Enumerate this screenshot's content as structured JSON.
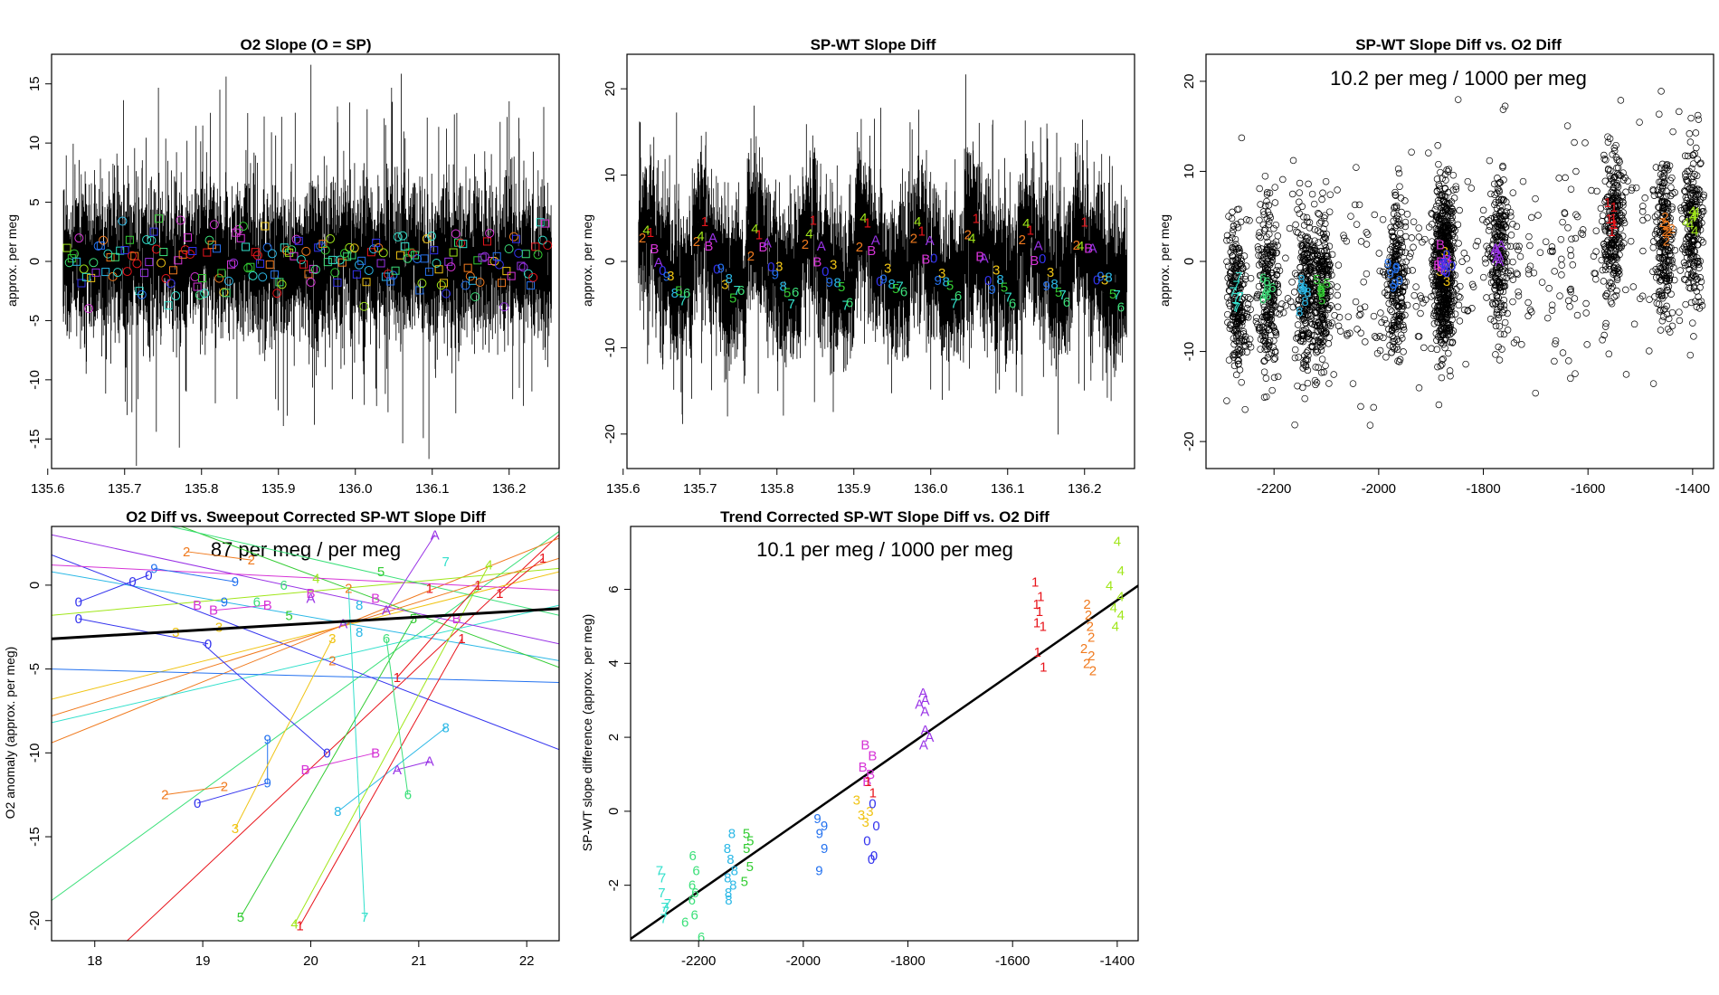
{
  "colors": {
    "1": "#e8141b",
    "2": "#f07a1e",
    "3": "#f0c414",
    "4": "#a0e619",
    "5": "#33cc33",
    "6": "#3ce07a",
    "7": "#33e0cc",
    "8": "#2bb8e6",
    "9": "#2472f0",
    "0": "#3333ee",
    "A": "#9933e6",
    "B": "#d633d6"
  },
  "chart_data": [
    {
      "type": "line",
      "id": "p1",
      "title": "O2 Slope (O = SP)",
      "xlabel": "",
      "ylabel": "approx. per meg",
      "xlim": [
        135.605,
        136.265
      ],
      "ylim": [
        -17.5,
        17.5
      ],
      "xticks": [
        135.6,
        135.7,
        135.8,
        135.9,
        136.0,
        136.1,
        136.2
      ],
      "xtick_labels": [
        "135.6",
        "135.7",
        "135.8",
        "135.9",
        "136.0",
        "136.1",
        "136.2"
      ],
      "yticks": [
        -15,
        -10,
        -5,
        0,
        5,
        10,
        15
      ],
      "ytick_labels": [
        "-15",
        "-10",
        "-5",
        "0",
        "5",
        "10",
        "15"
      ],
      "series_note": "dense black trace between about -4 and 4 with spikes to +/-15, colored squares and circles near 0",
      "x_range": [
        135.62,
        136.255
      ]
    },
    {
      "type": "line",
      "id": "p2",
      "title": "SP-WT Slope Diff",
      "xlabel": "",
      "ylabel": "approx. per meg",
      "xlim": [
        135.605,
        136.265
      ],
      "ylim": [
        -24,
        24
      ],
      "xticks": [
        135.6,
        135.7,
        135.8,
        135.9,
        136.0,
        136.1,
        136.2
      ],
      "xtick_labels": [
        "135.6",
        "135.7",
        "135.8",
        "135.9",
        "136.0",
        "136.1",
        "136.2"
      ],
      "yticks": [
        -20,
        -10,
        0,
        10,
        20
      ],
      "ytick_labels": [
        "-20",
        "-10",
        "0",
        "10",
        "20"
      ],
      "x_range": [
        135.62,
        136.255
      ],
      "label_pattern": [
        "2",
        "4",
        "1",
        "B",
        "A",
        "0",
        "9",
        "3",
        "8",
        "5",
        "7",
        "6"
      ],
      "label_values": [
        2.5,
        3.5,
        4.5,
        0.5,
        1.5,
        -1,
        -2,
        -1.5,
        -2.5,
        -3,
        -4,
        -4.5
      ]
    },
    {
      "type": "scatter",
      "id": "p3",
      "title": "SP-WT Slope Diff vs. O2 Diff",
      "annotation": "10.2 per meg / 1000 per meg",
      "xlabel": "",
      "ylabel": "approx. per meg",
      "xlim": [
        -2330,
        -1360
      ],
      "ylim": [
        -23,
        23
      ],
      "xticks": [
        -2200,
        -2000,
        -1800,
        -1600,
        -1400
      ],
      "xtick_labels": [
        "-2200",
        "-2000",
        "-1800",
        "-1600",
        "-1400"
      ],
      "yticks": [
        -20,
        -10,
        0,
        10,
        20
      ],
      "ytick_labels": [
        "-20",
        "-10",
        "0",
        "10",
        "20"
      ],
      "clusters": [
        {
          "key": "7",
          "x": -2270,
          "y": -3.8
        },
        {
          "key": "6",
          "x": -2210,
          "y": -3.2
        },
        {
          "key": "8",
          "x": -2140,
          "y": -3.0
        },
        {
          "key": "5",
          "x": -2110,
          "y": -2.8
        },
        {
          "key": "9",
          "x": -1965,
          "y": -2.0
        },
        {
          "key": "3",
          "x": -1880,
          "y": -0.5
        },
        {
          "key": "B",
          "x": -1875,
          "y": -0.3
        },
        {
          "key": "0",
          "x": -1870,
          "y": -1.0
        },
        {
          "key": "A",
          "x": -1770,
          "y": 0.8
        },
        {
          "key": "1",
          "x": -1550,
          "y": 4.0
        },
        {
          "key": "2",
          "x": -1455,
          "y": 3.0
        },
        {
          "key": "4",
          "x": -1400,
          "y": 4.5
        }
      ]
    },
    {
      "type": "line",
      "id": "p4",
      "title": "O2 Diff vs. Sweepout Corrected SP-WT Slope Diff",
      "annotation": "87 per meg / per meg",
      "xlabel": "",
      "ylabel": "O2 anomaly (approx. per meg)",
      "xlim": [
        17.6,
        22.3
      ],
      "ylim": [
        -21.2,
        3.5
      ],
      "xticks": [
        18,
        19,
        20,
        21,
        22
      ],
      "xtick_labels": [
        "18",
        "19",
        "20",
        "21",
        "22"
      ],
      "yticks": [
        -20,
        -15,
        -10,
        -5,
        0
      ],
      "ytick_labels": [
        "-20",
        "-15",
        "-10",
        "-5",
        "0"
      ],
      "fit_line": {
        "x": [
          17.6,
          22.3
        ],
        "y": [
          -3.2,
          -1.4
        ]
      },
      "labels": [
        {
          "t": "2",
          "x": 18.65,
          "y": -12.5
        },
        {
          "t": "2",
          "x": 19.2,
          "y": -12.0
        },
        {
          "t": "0",
          "x": 18.95,
          "y": -13.0
        },
        {
          "t": "9",
          "x": 19.6,
          "y": -11.8
        },
        {
          "t": "9",
          "x": 19.6,
          "y": -9.2
        },
        {
          "t": "3",
          "x": 19.3,
          "y": -14.5
        },
        {
          "t": "5",
          "x": 19.35,
          "y": -19.8
        },
        {
          "t": "4",
          "x": 19.85,
          "y": -20.2
        },
        {
          "t": "1",
          "x": 19.9,
          "y": -20.3
        },
        {
          "t": "7",
          "x": 20.5,
          "y": -19.8
        },
        {
          "t": "8",
          "x": 20.25,
          "y": -13.5
        },
        {
          "t": "6",
          "x": 20.9,
          "y": -12.5
        },
        {
          "t": "B",
          "x": 19.95,
          "y": -11.0
        },
        {
          "t": "0",
          "x": 20.15,
          "y": -10.0
        },
        {
          "t": "B",
          "x": 20.6,
          "y": -10.0
        },
        {
          "t": "A",
          "x": 20.8,
          "y": -11.0
        },
        {
          "t": "A",
          "x": 21.1,
          "y": -10.5
        },
        {
          "t": "8",
          "x": 21.25,
          "y": -8.5
        },
        {
          "t": "1",
          "x": 21.4,
          "y": -3.2
        },
        {
          "t": "1",
          "x": 20.8,
          "y": -5.5
        },
        {
          "t": "1",
          "x": 21.55,
          "y": 0.0
        },
        {
          "t": "1",
          "x": 21.75,
          "y": -0.5
        },
        {
          "t": "1",
          "x": 22.15,
          "y": 1.6
        },
        {
          "t": "4",
          "x": 21.65,
          "y": 1.2
        },
        {
          "t": "A",
          "x": 21.15,
          "y": 3.0
        },
        {
          "t": "0",
          "x": 18.35,
          "y": 0.2
        },
        {
          "t": "9",
          "x": 18.55,
          "y": 1.0
        },
        {
          "t": "0",
          "x": 17.85,
          "y": -1.0
        },
        {
          "t": "0",
          "x": 17.85,
          "y": -2.0
        },
        {
          "t": "0",
          "x": 18.5,
          "y": 0.6
        },
        {
          "t": "0",
          "x": 19.05,
          "y": -3.5
        },
        {
          "t": "B",
          "x": 19.1,
          "y": -1.5
        },
        {
          "t": "9",
          "x": 19.3,
          "y": 0.2
        },
        {
          "t": "6",
          "x": 19.5,
          "y": -1.0
        },
        {
          "t": "B",
          "x": 19.6,
          "y": -1.2
        },
        {
          "t": "5",
          "x": 19.8,
          "y": -1.8
        },
        {
          "t": "B",
          "x": 20.0,
          "y": -0.5
        },
        {
          "t": "A",
          "x": 20.3,
          "y": -2.3
        },
        {
          "t": "B",
          "x": 20.6,
          "y": -0.8
        },
        {
          "t": "3",
          "x": 20.2,
          "y": -3.2
        },
        {
          "t": "2",
          "x": 20.2,
          "y": -4.5
        },
        {
          "t": "8",
          "x": 20.45,
          "y": -1.2
        },
        {
          "t": "6",
          "x": 20.7,
          "y": -3.2
        },
        {
          "t": "B",
          "x": 21.35,
          "y": -2.0
        },
        {
          "t": "A",
          "x": 20.7,
          "y": -1.5
        },
        {
          "t": "7",
          "x": 21.25,
          "y": 1.4
        },
        {
          "t": "2",
          "x": 20.35,
          "y": -0.2
        },
        {
          "t": "3",
          "x": 19.15,
          "y": -2.5
        },
        {
          "t": "5",
          "x": 20.95,
          "y": -2.0
        },
        {
          "t": "9",
          "x": 19.2,
          "y": -1.0
        },
        {
          "t": "2",
          "x": 18.85,
          "y": 2.0
        },
        {
          "t": "5",
          "x": 20.65,
          "y": 0.8
        },
        {
          "t": "4",
          "x": 20.05,
          "y": 0.4
        },
        {
          "t": "6",
          "x": 19.75,
          "y": 0.0
        },
        {
          "t": "B",
          "x": 18.95,
          "y": -1.2
        },
        {
          "t": "3",
          "x": 18.75,
          "y": -2.8
        },
        {
          "t": "2",
          "x": 19.45,
          "y": 1.5
        },
        {
          "t": "A",
          "x": 20.0,
          "y": -0.8
        },
        {
          "t": "1",
          "x": 21.1,
          "y": -0.2
        },
        {
          "t": "8",
          "x": 20.45,
          "y": -2.8
        }
      ],
      "connectors": [
        {
          "k": "2",
          "x1": 18.65,
          "y1": -12.5,
          "x2": 19.2,
          "y2": -12.0
        },
        {
          "k": "0",
          "x1": 18.95,
          "y1": -13.0,
          "x2": 19.6,
          "y2": -11.8
        },
        {
          "k": "9",
          "x1": 19.6,
          "y1": -11.8,
          "x2": 19.6,
          "y2": -9.2
        },
        {
          "k": "0",
          "x1": 20.15,
          "y1": -10.0,
          "x2": 19.0,
          "y2": -3.5
        },
        {
          "k": "B",
          "x1": 19.95,
          "y1": -11.0,
          "x2": 20.6,
          "y2": -10.0
        },
        {
          "k": "A",
          "x1": 20.8,
          "y1": -11.0,
          "x2": 21.1,
          "y2": -10.5
        },
        {
          "k": "8",
          "x1": 20.25,
          "y1": -13.5,
          "x2": 21.25,
          "y2": -8.5
        },
        {
          "k": "7",
          "x1": 20.5,
          "y1": -19.8,
          "x2": 20.35,
          "y2": -0.2
        },
        {
          "k": "5",
          "x1": 19.35,
          "y1": -19.8,
          "x2": 20.95,
          "y2": -2.0
        },
        {
          "k": "4",
          "x1": 19.85,
          "y1": -20.2,
          "x2": 21.65,
          "y2": 1.2
        },
        {
          "k": "1",
          "x1": 19.9,
          "y1": -20.3,
          "x2": 21.4,
          "y2": -3.2
        },
        {
          "k": "3",
          "x1": 19.3,
          "y1": -14.5,
          "x2": 20.2,
          "y2": -3.2
        },
        {
          "k": "6",
          "x1": 20.9,
          "y1": -12.5,
          "x2": 20.7,
          "y2": -3.2
        },
        {
          "k": "1",
          "x1": 20.8,
          "y1": -5.5,
          "x2": 21.55,
          "y2": 0.0
        },
        {
          "k": "1",
          "x1": 21.75,
          "y1": -0.5,
          "x2": 22.15,
          "y2": 1.6
        },
        {
          "k": "A",
          "x1": 20.7,
          "y1": -1.5,
          "x2": 21.15,
          "y2": 3.0
        },
        {
          "k": "9",
          "x1": 18.55,
          "y1": 1.0,
          "x2": 19.3,
          "y2": 0.2
        },
        {
          "k": "0",
          "x1": 17.85,
          "y1": -1.0,
          "x2": 18.5,
          "y2": 0.6
        },
        {
          "k": "B",
          "x1": 19.1,
          "y1": -1.5,
          "x2": 19.6,
          "y2": -1.2
        },
        {
          "k": "2",
          "x1": 18.85,
          "y1": 2.0,
          "x2": 19.45,
          "y2": 1.5
        },
        {
          "k": "0",
          "x1": 17.85,
          "y1": -2.0,
          "x2": 19.05,
          "y2": -3.5
        }
      ],
      "long_lines": [
        {
          "k": "1",
          "x1": 18.3,
          "y1": -21.2,
          "x2": 22.3,
          "y2": 3.0
        },
        {
          "k": "6",
          "x1": 17.6,
          "y1": -18.8,
          "x2": 22.3,
          "y2": 3.2
        },
        {
          "k": "3",
          "x1": 17.6,
          "y1": -6.8,
          "x2": 22.3,
          "y2": 0.8
        },
        {
          "k": "2",
          "x1": 17.6,
          "y1": -9.4,
          "x2": 22.3,
          "y2": 2.8
        },
        {
          "k": "7",
          "x1": 17.6,
          "y1": -8.2,
          "x2": 22.3,
          "y2": -1.2
        },
        {
          "k": "9",
          "x1": 17.6,
          "y1": -5.0,
          "x2": 22.3,
          "y2": -5.8
        },
        {
          "k": "8",
          "x1": 17.6,
          "y1": 0.8,
          "x2": 22.3,
          "y2": -4.5
        },
        {
          "k": "0",
          "x1": 17.6,
          "y1": 1.8,
          "x2": 22.3,
          "y2": -9.8
        },
        {
          "k": "A",
          "x1": 17.6,
          "y1": 3.0,
          "x2": 22.3,
          "y2": -3.5
        },
        {
          "k": "5",
          "x1": 18.8,
          "y1": 3.5,
          "x2": 22.3,
          "y2": -4.9
        },
        {
          "k": "B",
          "x1": 17.6,
          "y1": 1.2,
          "x2": 22.3,
          "y2": -0.3
        },
        {
          "k": "4",
          "x1": 17.6,
          "y1": -1.8,
          "x2": 22.3,
          "y2": 1.0
        },
        {
          "k": "6",
          "x1": 18.7,
          "y1": 3.5,
          "x2": 22.3,
          "y2": -1.8
        },
        {
          "k": "2",
          "x1": 17.6,
          "y1": -7.8,
          "x2": 22.3,
          "y2": 1.6
        }
      ]
    },
    {
      "type": "scatter",
      "id": "p5",
      "title": "Trend Corrected SP-WT Slope Diff vs. O2 Diff",
      "annotation": "10.1 per meg / 1000 per meg",
      "xlabel": "",
      "ylabel": "SP-WT slope difference (approx. per meg)",
      "xlim": [
        -2330,
        -1360
      ],
      "ylim": [
        -3.5,
        7.7
      ],
      "xticks": [
        -2200,
        -2000,
        -1800,
        -1600,
        -1400
      ],
      "xtick_labels": [
        "-2200",
        "-2000",
        "-1800",
        "-1600",
        "-1400"
      ],
      "yticks": [
        -2,
        0,
        2,
        4,
        6
      ],
      "ytick_labels": [
        "-2",
        "0",
        "2",
        "4",
        "6"
      ],
      "fit_line": {
        "x": [
          -2330,
          -1360
        ],
        "y": [
          -3.45,
          6.1
        ]
      },
      "groups": [
        {
          "key": "7",
          "x": -2265,
          "y": [
            -1.6,
            -1.8,
            -2.2,
            -2.5,
            -2.6,
            -2.7,
            -2.9
          ]
        },
        {
          "key": "6",
          "x": -2210,
          "y": [
            -1.2,
            -1.6,
            -2.0,
            -2.2,
            -2.4,
            -2.8,
            -3.0,
            -3.4
          ]
        },
        {
          "key": "8",
          "x": -2140,
          "y": [
            -0.6,
            -1.0,
            -1.3,
            -1.6,
            -1.8,
            -2.0,
            -2.2,
            -2.4
          ]
        },
        {
          "key": "5",
          "x": -2105,
          "y": [
            -0.6,
            -0.8,
            -1.0,
            -1.5,
            -1.9
          ]
        },
        {
          "key": "9",
          "x": -1965,
          "y": [
            -0.2,
            -0.4,
            -0.6,
            -1.0,
            -1.6
          ]
        },
        {
          "key": "3",
          "x": -1888,
          "y": [
            0.3,
            0.0,
            -0.1,
            -0.3
          ]
        },
        {
          "key": "B",
          "x": -1878,
          "y": [
            1.8,
            1.5,
            1.2,
            1.0,
            0.8
          ]
        },
        {
          "key": "1",
          "x": -1872,
          "y": [
            0.8,
            0.5
          ]
        },
        {
          "key": "0",
          "x": -1868,
          "y": [
            0.2,
            -0.4,
            -0.8,
            -1.2,
            -1.3
          ]
        },
        {
          "key": "A",
          "x": -1770,
          "y": [
            3.2,
            3.0,
            2.9,
            2.7,
            2.2,
            2.0,
            1.8
          ]
        },
        {
          "key": "1",
          "x": -1550,
          "y": [
            6.2,
            5.8,
            5.6,
            5.4,
            5.1,
            5.0,
            4.3,
            3.9
          ]
        },
        {
          "key": "2",
          "x": -1455,
          "y": [
            5.6,
            5.3,
            5.0,
            4.7,
            4.4,
            4.2,
            4.0,
            3.8
          ]
        },
        {
          "key": "4",
          "x": -1400,
          "y": [
            7.3,
            6.5,
            6.1,
            5.8,
            5.5,
            5.3,
            5.0
          ]
        }
      ]
    }
  ]
}
